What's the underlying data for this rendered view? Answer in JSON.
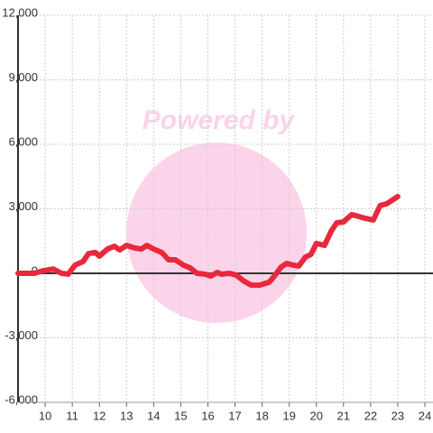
{
  "chart_data": {
    "type": "line",
    "watermark": "Powered by",
    "xlim": [
      9,
      24.3
    ],
    "ylim": [
      -6000,
      12000
    ],
    "xticks": [
      10,
      11,
      12,
      13,
      14,
      15,
      16,
      17,
      18,
      19,
      20,
      21,
      22,
      23,
      24
    ],
    "yticks": [
      {
        "value": -6000,
        "label": "-6,000"
      },
      {
        "value": -3000,
        "label": "-3,000"
      },
      0,
      {
        "value": 3000,
        "label": "3,000"
      },
      {
        "value": 6000,
        "label": "6,000"
      },
      {
        "value": 9000,
        "label": "9,000"
      },
      {
        "value": 12000,
        "label": "12,000"
      }
    ],
    "grid": true,
    "series": [
      {
        "color": "#e8283c",
        "x": [
          9.0,
          9.6,
          9.95,
          10.3,
          10.6,
          10.85,
          11.1,
          11.4,
          11.6,
          11.85,
          12.0,
          12.3,
          12.55,
          12.75,
          13.0,
          13.3,
          13.55,
          13.75,
          14.0,
          14.3,
          14.55,
          14.8,
          15.1,
          15.35,
          15.6,
          15.9,
          16.1,
          16.35,
          16.5,
          16.8,
          17.05,
          17.3,
          17.6,
          17.9,
          18.25,
          18.4,
          18.7,
          18.9,
          19.15,
          19.35,
          19.6,
          19.8,
          20.0,
          20.3,
          20.55,
          20.75,
          21.0,
          21.3,
          21.55,
          21.8,
          22.1,
          22.35,
          22.6,
          23.0
        ],
        "values": [
          0,
          0,
          130,
          200,
          0,
          -40,
          380,
          550,
          920,
          970,
          800,
          1130,
          1260,
          1090,
          1300,
          1180,
          1130,
          1300,
          1130,
          970,
          630,
          630,
          380,
          250,
          0,
          -40,
          -130,
          40,
          -40,
          0,
          -80,
          -340,
          -550,
          -550,
          -420,
          -210,
          290,
          460,
          380,
          340,
          760,
          880,
          1390,
          1300,
          1970,
          2350,
          2390,
          2730,
          2650,
          2560,
          2480,
          3150,
          3240,
          3570
        ]
      }
    ]
  }
}
